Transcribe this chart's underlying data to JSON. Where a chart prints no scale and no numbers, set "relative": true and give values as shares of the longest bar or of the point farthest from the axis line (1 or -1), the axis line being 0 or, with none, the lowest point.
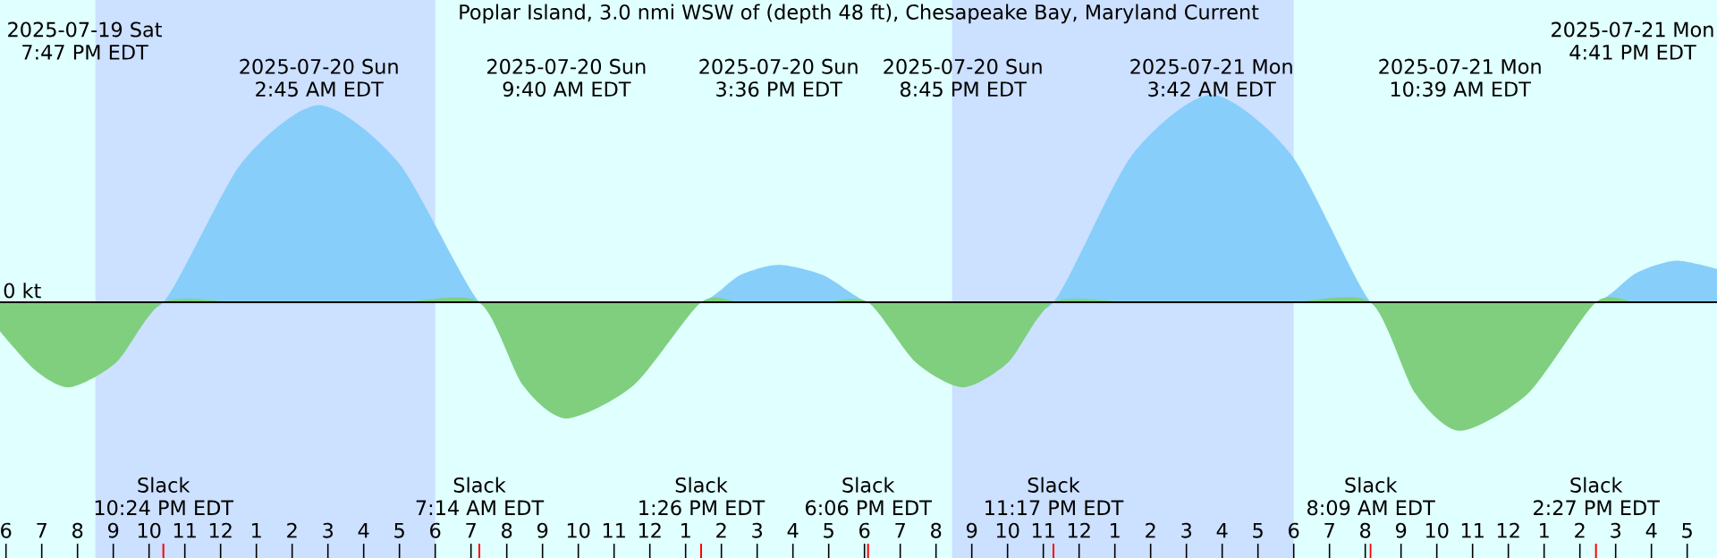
{
  "chart_data": {
    "type": "area",
    "title": "Poplar Island, 3.0 nmi WSW of (depth 48 ft), Chesapeake Bay, Maryland Current",
    "relative": true,
    "x": [
      "2025-07-19T17:50",
      "2025-07-19T18:50",
      "2025-07-19T19:47",
      "2025-07-19T21:05",
      "2025-07-19T22:24",
      "2025-07-20T00:35",
      "2025-07-20T02:45",
      "2025-07-20T04:59",
      "2025-07-20T07:14",
      "2025-07-20T08:27",
      "2025-07-20T09:40",
      "2025-07-20T11:33",
      "2025-07-20T13:26",
      "2025-07-20T14:31",
      "2025-07-20T15:36",
      "2025-07-20T16:51",
      "2025-07-20T18:06",
      "2025-07-20T19:26",
      "2025-07-20T20:45",
      "2025-07-20T22:01",
      "2025-07-20T23:17",
      "2025-07-21T01:29",
      "2025-07-21T03:42",
      "2025-07-21T05:56",
      "2025-07-21T08:09",
      "2025-07-21T09:24",
      "2025-07-21T10:39",
      "2025-07-21T12:33",
      "2025-07-21T14:27",
      "2025-07-21T15:34",
      "2025-07-21T16:41",
      "2025-07-21T17:50"
    ],
    "series": [
      {
        "color": "#87cefa",
        "values": [
          0,
          0,
          0,
          0,
          0,
          0.67,
          0.95,
          0.67,
          0,
          0,
          0,
          0,
          0,
          0.13,
          0.18,
          0.13,
          0,
          0,
          0,
          0,
          0,
          0.71,
          1.0,
          0.71,
          0,
          0,
          0,
          0,
          0,
          0.14,
          0.2,
          0.16
        ]
      },
      {
        "color": "#7fcf7f",
        "values": [
          -0.14,
          -0.33,
          -0.41,
          -0.29,
          0,
          0,
          0,
          0,
          0,
          -0.4,
          -0.56,
          -0.4,
          0,
          0,
          0,
          0,
          0,
          -0.29,
          -0.41,
          -0.29,
          0,
          0,
          0,
          0,
          0,
          -0.44,
          -0.62,
          -0.44,
          0,
          0,
          0,
          0
        ]
      }
    ],
    "xlim": [
      "2025-07-19T17:50",
      "2025-07-21T17:50"
    ],
    "xticks": [
      {
        "value": "2025-07-19T18:00",
        "label": "6"
      },
      {
        "value": "2025-07-19T19:00",
        "label": "7"
      },
      {
        "value": "2025-07-19T20:00",
        "label": "8"
      },
      {
        "value": "2025-07-19T21:00",
        "label": "9"
      },
      {
        "value": "2025-07-19T22:00",
        "label": "10"
      },
      {
        "value": "2025-07-19T23:00",
        "label": "11"
      },
      {
        "value": "2025-07-20T00:00",
        "label": "12"
      },
      {
        "value": "2025-07-20T01:00",
        "label": "1"
      },
      {
        "value": "2025-07-20T02:00",
        "label": "2"
      },
      {
        "value": "2025-07-20T03:00",
        "label": "3"
      },
      {
        "value": "2025-07-20T04:00",
        "label": "4"
      },
      {
        "value": "2025-07-20T05:00",
        "label": "5"
      },
      {
        "value": "2025-07-20T06:00",
        "label": "6"
      },
      {
        "value": "2025-07-20T07:00",
        "label": "7"
      },
      {
        "value": "2025-07-20T08:00",
        "label": "8"
      },
      {
        "value": "2025-07-20T09:00",
        "label": "9"
      },
      {
        "value": "2025-07-20T10:00",
        "label": "10"
      },
      {
        "value": "2025-07-20T11:00",
        "label": "11"
      },
      {
        "value": "2025-07-20T12:00",
        "label": "12"
      },
      {
        "value": "2025-07-20T13:00",
        "label": "1"
      },
      {
        "value": "2025-07-20T14:00",
        "label": "2"
      },
      {
        "value": "2025-07-20T15:00",
        "label": "3"
      },
      {
        "value": "2025-07-20T16:00",
        "label": "4"
      },
      {
        "value": "2025-07-20T17:00",
        "label": "5"
      },
      {
        "value": "2025-07-20T18:00",
        "label": "6"
      },
      {
        "value": "2025-07-20T19:00",
        "label": "7"
      },
      {
        "value": "2025-07-20T20:00",
        "label": "8"
      },
      {
        "value": "2025-07-20T21:00",
        "label": "9"
      },
      {
        "value": "2025-07-20T22:00",
        "label": "10"
      },
      {
        "value": "2025-07-20T23:00",
        "label": "11"
      },
      {
        "value": "2025-07-21T00:00",
        "label": "12"
      },
      {
        "value": "2025-07-21T01:00",
        "label": "1"
      },
      {
        "value": "2025-07-21T02:00",
        "label": "2"
      },
      {
        "value": "2025-07-21T03:00",
        "label": "3"
      },
      {
        "value": "2025-07-21T04:00",
        "label": "4"
      },
      {
        "value": "2025-07-21T05:00",
        "label": "5"
      },
      {
        "value": "2025-07-21T06:00",
        "label": "6"
      },
      {
        "value": "2025-07-21T07:00",
        "label": "7"
      },
      {
        "value": "2025-07-21T08:00",
        "label": "8"
      },
      {
        "value": "2025-07-21T09:00",
        "label": "9"
      },
      {
        "value": "2025-07-21T10:00",
        "label": "10"
      },
      {
        "value": "2025-07-21T11:00",
        "label": "11"
      },
      {
        "value": "2025-07-21T12:00",
        "label": "12"
      },
      {
        "value": "2025-07-21T13:00",
        "label": "1"
      },
      {
        "value": "2025-07-21T14:00",
        "label": "2"
      },
      {
        "value": "2025-07-21T15:00",
        "label": "3"
      },
      {
        "value": "2025-07-21T16:00",
        "label": "4"
      },
      {
        "value": "2025-07-21T17:00",
        "label": "5"
      }
    ],
    "x2lim": [
      "2025-07-19T17:50",
      "2025-07-21T17:50"
    ],
    "x2ticks": [
      {
        "value": "2025-07-20T02:45",
        "label": "2025-07-20 Sun 2:45 AM EDT"
      },
      {
        "value": "2025-07-20T09:40",
        "label": "2025-07-20 Sun 9:40 AM EDT"
      },
      {
        "value": "2025-07-20T15:36",
        "label": "2025-07-20 Sun 3:36 PM EDT"
      },
      {
        "value": "2025-07-20T20:45",
        "label": "2025-07-20 Sun 8:45 PM EDT"
      },
      {
        "value": "2025-07-21T03:42",
        "label": "2025-07-21 Mon 3:42 AM EDT"
      },
      {
        "value": "2025-07-21T10:39",
        "label": "2025-07-21 Mon 10:39 AM EDT"
      }
    ],
    "ref_lines": [
      {
        "axis": "y",
        "value": 0,
        "label": "0 kt",
        "color": "#000000"
      },
      {
        "axis": "x",
        "value": "2025-07-19T22:24",
        "label": "Slack 10:24 PM EDT",
        "color": "#ff0000"
      },
      {
        "axis": "x",
        "value": "2025-07-20T07:14",
        "label": "Slack 7:14 AM EDT",
        "color": "#ff0000"
      },
      {
        "axis": "x",
        "value": "2025-07-20T13:26",
        "label": "Slack 1:26 PM EDT",
        "color": "#ff0000"
      },
      {
        "axis": "x",
        "value": "2025-07-20T18:06",
        "label": "Slack 6:06 PM EDT",
        "color": "#ff0000"
      },
      {
        "axis": "x",
        "value": "2025-07-20T23:17",
        "label": "Slack 11:17 PM EDT",
        "color": "#ff0000"
      },
      {
        "axis": "x",
        "value": "2025-07-21T08:09",
        "label": "Slack 8:09 AM EDT",
        "color": "#ff0000"
      },
      {
        "axis": "x",
        "value": "2025-07-21T14:27",
        "label": "Slack 2:27 PM EDT",
        "color": "#ff0000"
      }
    ],
    "bands": [
      {
        "axis": "x",
        "from": "2025-07-19T20:30",
        "to": "2025-07-20T06:00",
        "color": "#cce0ff"
      },
      {
        "axis": "x",
        "from": "2025-07-20T20:27",
        "to": "2025-07-21T06:00",
        "color": "#cce0ff"
      }
    ],
    "annotations": [
      "2025-07-19 Sat 7:47 PM EDT",
      "2025-07-21 Mon 4:41 PM EDT"
    ]
  }
}
